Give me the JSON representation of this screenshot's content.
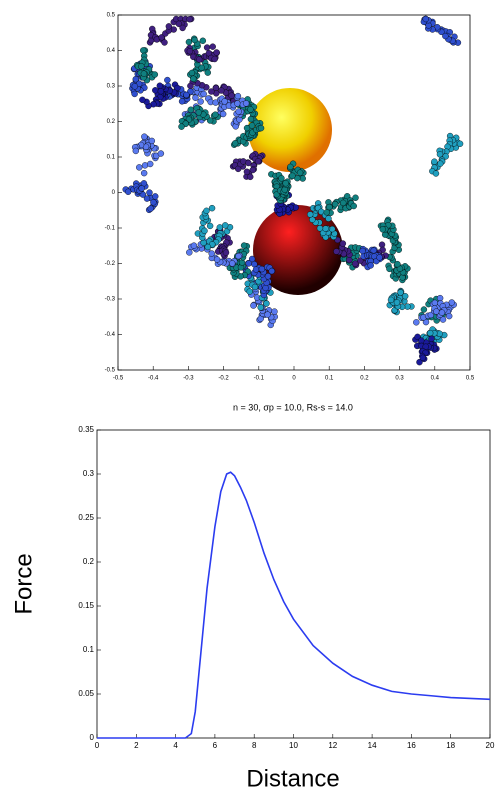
{
  "chart_data": [
    {
      "type": "scatter",
      "xlim": [
        -0.5,
        0.5
      ],
      "ylim": [
        -0.5,
        0.5
      ],
      "xticks": [
        -0.5,
        -0.4,
        -0.3,
        -0.2,
        -0.1,
        0,
        0.1,
        0.2,
        0.3,
        0.4,
        0.5
      ],
      "yticks": [
        -0.5,
        -0.4,
        -0.3,
        -0.2,
        -0.1,
        0,
        0.1,
        0.2,
        0.3,
        0.4,
        0.5
      ]
    },
    {
      "type": "line",
      "title": "n = 30, σp = 10.0, Rs-s = 14.0",
      "xlabel": "Distance",
      "ylabel": "Force",
      "xlim": [
        0,
        20
      ],
      "ylim": [
        0,
        0.35
      ],
      "xticks": [
        0,
        2,
        4,
        6,
        8,
        10,
        12,
        14,
        16,
        18,
        20
      ],
      "yticks": [
        0,
        0.05,
        0.1,
        0.15,
        0.2,
        0.25,
        0.3,
        0.35
      ],
      "x": [
        0,
        1,
        2,
        3,
        4,
        4.5,
        4.8,
        5,
        5.3,
        5.6,
        6,
        6.3,
        6.6,
        6.8,
        7,
        7.3,
        7.6,
        8,
        8.5,
        9,
        9.5,
        10,
        11,
        12,
        13,
        14,
        15,
        16,
        17,
        18,
        19,
        20
      ],
      "series": [
        {
          "color": "#2b3cf0",
          "values": [
            0,
            0,
            0,
            0,
            0,
            0,
            0.005,
            0.03,
            0.1,
            0.17,
            0.24,
            0.28,
            0.3,
            0.302,
            0.298,
            0.285,
            0.27,
            0.245,
            0.21,
            0.18,
            0.155,
            0.135,
            0.105,
            0.085,
            0.07,
            0.06,
            0.053,
            0.05,
            0.048,
            0.046,
            0.045,
            0.044
          ]
        }
      ]
    }
  ]
}
